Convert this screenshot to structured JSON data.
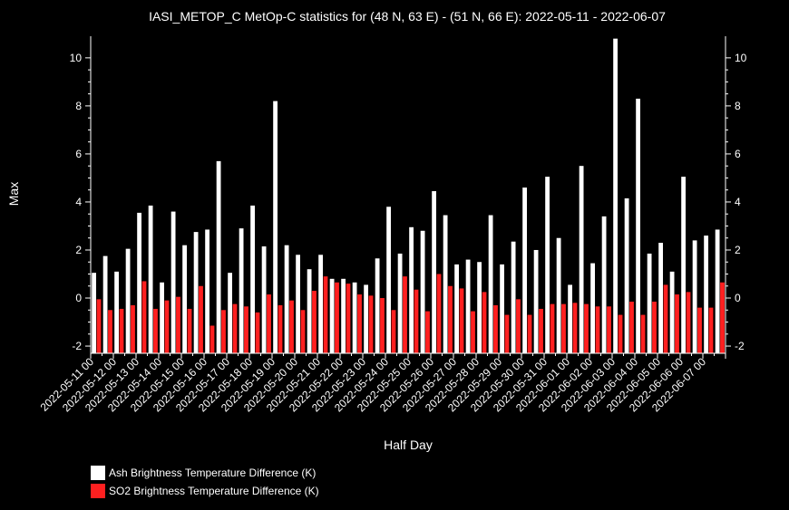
{
  "chart_data": {
    "type": "bar",
    "title": "IASI_METOP_C MetOp-C statistics for (48 N, 63 E) - (51 N, 66 E): 2022-05-11 - 2022-06-07",
    "xlabel": "Half Day",
    "ylabel": "Max",
    "ylim": [
      -2.3,
      10.9
    ],
    "yticks": [
      -2,
      0,
      2,
      4,
      6,
      8,
      10
    ],
    "grid": false,
    "legend_position": "bottom-left",
    "tick_labels": [
      "2022-05-11 00",
      "2022-05-12 00",
      "2022-05-13 00",
      "2022-05-14 00",
      "2022-05-15 00",
      "2022-05-16 00",
      "2022-05-17 00",
      "2022-05-18 00",
      "2022-05-19 00",
      "2022-05-20 00",
      "2022-05-21 00",
      "2022-05-22 00",
      "2022-05-23 00",
      "2022-05-24 00",
      "2022-05-25 00",
      "2022-05-26 00",
      "2022-05-27 00",
      "2022-05-28 00",
      "2022-05-29 00",
      "2022-05-30 00",
      "2022-05-31 00",
      "2022-06-01 00",
      "2022-06-02 00",
      "2022-06-03 00",
      "2022-06-04 00",
      "2022-06-05 00",
      "2022-06-06 00",
      "2022-06-07 00"
    ],
    "series": [
      {
        "name": "Ash Brightness Temperature Difference (K)",
        "color": "#ffffff",
        "values": [
          1.05,
          1.75,
          1.1,
          2.05,
          3.55,
          3.85,
          0.65,
          3.6,
          2.2,
          2.75,
          2.85,
          5.7,
          1.05,
          2.9,
          3.85,
          2.15,
          8.2,
          2.2,
          1.8,
          1.2,
          1.8,
          0.8,
          0.8,
          0.65,
          0.55,
          1.65,
          3.8,
          1.85,
          2.95,
          2.8,
          4.45,
          3.45,
          1.4,
          1.6,
          1.5,
          3.45,
          1.4,
          2.35,
          4.6,
          2.0,
          5.05,
          2.5,
          0.55,
          5.5,
          1.45,
          3.4,
          10.8,
          4.15,
          8.3,
          1.85,
          2.3,
          1.1,
          5.05,
          2.4,
          2.6,
          2.85
        ]
      },
      {
        "name": "SO2 Brightness Temperature Difference (K)",
        "color": "#ff2020",
        "values": [
          -0.05,
          -0.5,
          -0.45,
          -0.3,
          0.7,
          -0.45,
          -0.1,
          0.05,
          -0.45,
          0.5,
          -1.15,
          -0.5,
          -0.25,
          -0.35,
          -0.6,
          0.15,
          -0.3,
          -0.1,
          -0.5,
          0.3,
          0.9,
          0.65,
          0.6,
          0.15,
          0.1,
          0.0,
          -0.5,
          0.9,
          0.35,
          -0.55,
          1.0,
          0.5,
          0.4,
          -0.55,
          0.25,
          -0.3,
          -0.7,
          -0.05,
          -0.7,
          -0.45,
          -0.25,
          -0.25,
          -0.2,
          -0.25,
          -0.35,
          -0.35,
          -0.7,
          -0.15,
          -0.7,
          -0.15,
          0.55,
          0.15,
          0.25,
          -0.4,
          -0.4,
          0.65
        ]
      }
    ]
  }
}
